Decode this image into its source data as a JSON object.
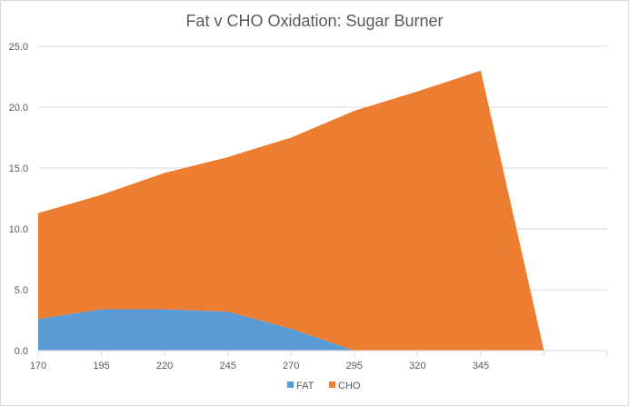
{
  "chart_data": {
    "type": "area",
    "title": "Fat v CHO Oxidation: Sugar Burner",
    "xlabel": "",
    "ylabel": "",
    "x": [
      "170",
      "195",
      "220",
      "245",
      "270",
      "295",
      "320",
      "345",
      ""
    ],
    "series": [
      {
        "name": "FAT",
        "color": "#5b9bd5",
        "values": [
          2.6,
          3.4,
          3.4,
          3.2,
          1.8,
          0.0,
          0.0,
          0.0,
          0.0
        ]
      },
      {
        "name": "CHO",
        "color": "#ed7d31",
        "values": [
          8.7,
          9.4,
          11.2,
          12.7,
          15.7,
          19.7,
          21.3,
          23.0,
          0.0
        ]
      }
    ],
    "stacked": true,
    "ylim": [
      0,
      25
    ],
    "yticks": [
      "0.0",
      "5.0",
      "10.0",
      "15.0",
      "20.0",
      "25.0"
    ],
    "grid": true,
    "legend_position": "bottom"
  }
}
